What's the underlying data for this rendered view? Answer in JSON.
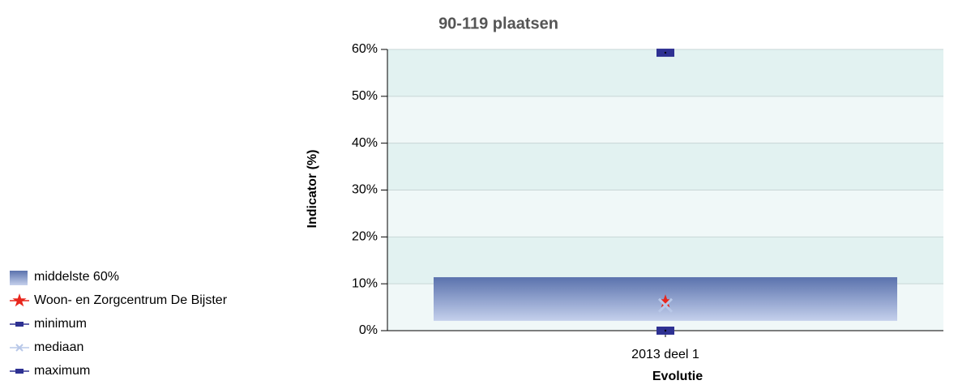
{
  "chart_data": {
    "type": "range",
    "title": "90-119 plaatsen",
    "y_label": "Indicator (%)",
    "x_label": "Evolutie",
    "categories": [
      "2013 deel 1"
    ],
    "ylim": [
      0,
      60
    ],
    "yticks": [
      {
        "value": 0,
        "label": "0%"
      },
      {
        "value": 10,
        "label": "10%"
      },
      {
        "value": 20,
        "label": "20%"
      },
      {
        "value": 30,
        "label": "30%"
      },
      {
        "value": 40,
        "label": "40%"
      },
      {
        "value": 50,
        "label": "50%"
      },
      {
        "value": 60,
        "label": "60%"
      }
    ],
    "band": {
      "name": "middelste 60%",
      "color": "#5b74b0",
      "low": [
        2.1
      ],
      "high": [
        11.4
      ]
    },
    "series": [
      {
        "name": "Woon- en Zorgcentrum De Bijster",
        "color": "#e8261c",
        "marker": "star",
        "values": [
          6.2
        ]
      },
      {
        "name": "minimum",
        "color": "#2e3192",
        "marker": "rect",
        "values": [
          0
        ]
      },
      {
        "name": "mediaan",
        "color": "#b8c8e8",
        "marker": "x",
        "values": [
          5.4
        ]
      },
      {
        "name": "maximum",
        "color": "#2e3192",
        "marker": "rect",
        "values": [
          59.3
        ]
      }
    ]
  }
}
